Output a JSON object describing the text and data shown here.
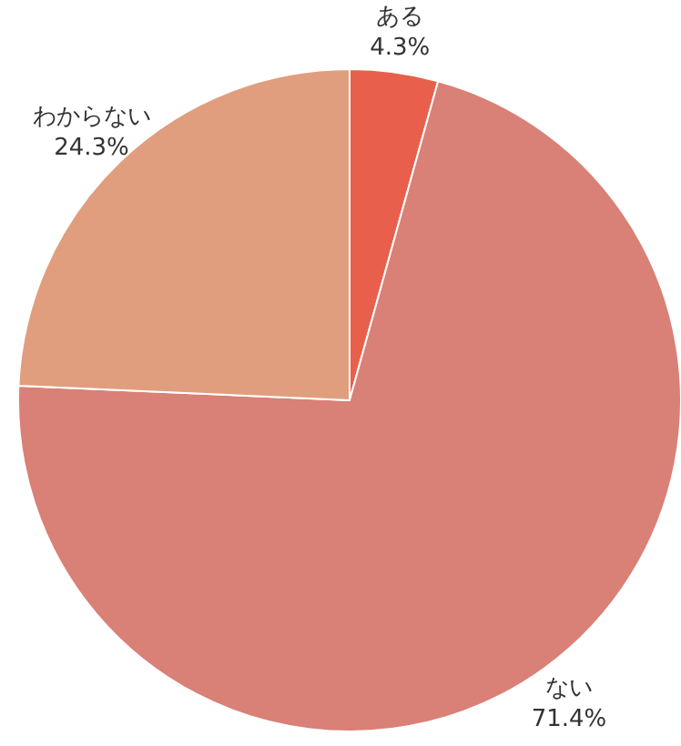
{
  "chart_data": {
    "type": "pie",
    "categories": [
      "ある",
      "ない",
      "わからない"
    ],
    "values": [
      4.3,
      71.4,
      24.3
    ],
    "colors": [
      "#e8604c",
      "#d98077",
      "#e09e7e"
    ],
    "value_labels": [
      "4.3%",
      "71.4%",
      "24.3%"
    ]
  }
}
